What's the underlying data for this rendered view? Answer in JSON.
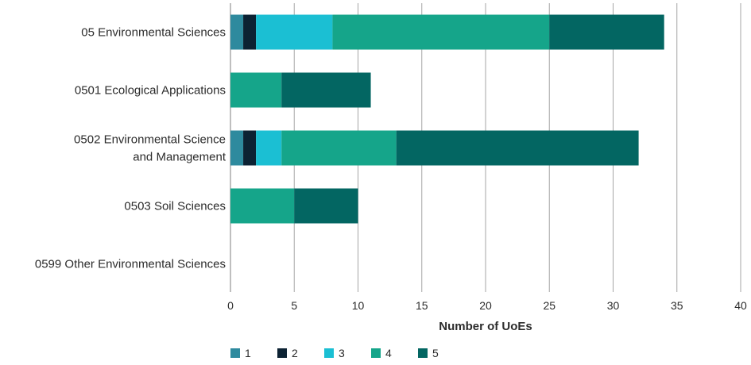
{
  "chart_data": {
    "type": "bar",
    "orientation": "horizontal",
    "stacked": true,
    "categories": [
      [
        "05 Environmental Sciences"
      ],
      [
        "0501 Ecological Applications"
      ],
      [
        "0502 Environmental Science",
        "and Management"
      ],
      [
        "0503 Soil Sciences"
      ],
      [
        "0599 Other Environmental Sciences"
      ]
    ],
    "series": [
      {
        "name": "1",
        "color": "#2e8a9e",
        "values": [
          1,
          0,
          1,
          0,
          0
        ]
      },
      {
        "name": "2",
        "color": "#0c2233",
        "values": [
          1,
          0,
          1,
          0,
          0
        ]
      },
      {
        "name": "3",
        "color": "#1bbfd3",
        "values": [
          6,
          0,
          2,
          0,
          0
        ]
      },
      {
        "name": "4",
        "color": "#15a58a",
        "values": [
          17,
          4,
          9,
          5,
          0
        ]
      },
      {
        "name": "5",
        "color": "#036662",
        "values": [
          9,
          7,
          19,
          5,
          0
        ]
      }
    ],
    "xlim": [
      0,
      40
    ],
    "xticks": [
      0,
      5,
      10,
      15,
      20,
      25,
      30,
      35,
      40
    ],
    "xlabel": "Number of UoEs",
    "ylabel": "",
    "title": "",
    "grid": "vertical",
    "legend_position": "bottom-left"
  }
}
